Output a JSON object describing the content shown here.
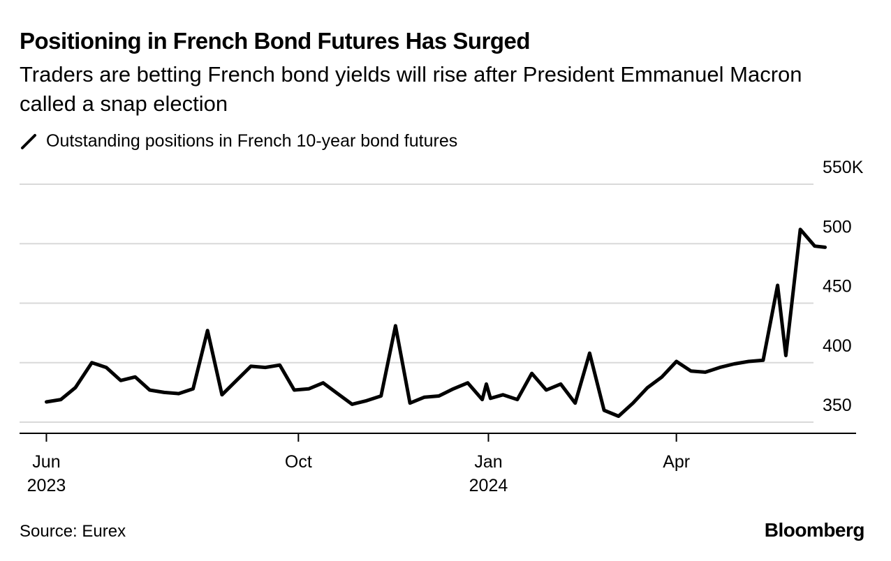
{
  "title": "Positioning in French Bond Futures Has Surged",
  "subtitle": "Traders are betting French bond yields will rise after President Emmanuel Macron called a snap election",
  "legend_label": "Outstanding positions in French 10-year bond futures",
  "source": "Source: Eurex",
  "brand": "Bloomberg",
  "colors": {
    "line": "#000000",
    "grid": "#d9d9d9",
    "axis": "#000000",
    "text": "#000000"
  },
  "chart_data": {
    "type": "line",
    "title": "Positioning in French Bond Futures Has Surged",
    "xlabel": "",
    "ylabel": "",
    "ylim": [
      340,
      550
    ],
    "yticks": [
      350,
      400,
      450,
      500,
      550
    ],
    "ytick_labels": [
      "350",
      "400",
      "450",
      "500",
      "550K"
    ],
    "xlim": [
      "2023-05-19",
      "2024-06-27"
    ],
    "xticks": [
      {
        "date": "2023-06-01",
        "label": "Jun",
        "sublabel": "2023"
      },
      {
        "date": "2023-10-01",
        "label": "Oct",
        "sublabel": ""
      },
      {
        "date": "2024-01-01",
        "label": "Jan",
        "sublabel": "2024"
      },
      {
        "date": "2024-04-01",
        "label": "Apr",
        "sublabel": ""
      }
    ],
    "grid": true,
    "series": [
      {
        "name": "Outstanding positions in French 10-year bond futures",
        "points": [
          [
            "2023-06-01",
            367
          ],
          [
            "2023-06-08",
            369
          ],
          [
            "2023-06-15",
            379
          ],
          [
            "2023-06-23",
            400
          ],
          [
            "2023-06-30",
            396
          ],
          [
            "2023-07-07",
            385
          ],
          [
            "2023-07-14",
            388
          ],
          [
            "2023-07-21",
            377
          ],
          [
            "2023-07-28",
            375
          ],
          [
            "2023-08-04",
            374
          ],
          [
            "2023-08-11",
            378
          ],
          [
            "2023-08-18",
            427
          ],
          [
            "2023-08-25",
            373
          ],
          [
            "2023-09-01",
            385
          ],
          [
            "2023-09-08",
            397
          ],
          [
            "2023-09-15",
            396
          ],
          [
            "2023-09-22",
            398
          ],
          [
            "2023-09-29",
            377
          ],
          [
            "2023-10-06",
            378
          ],
          [
            "2023-10-13",
            383
          ],
          [
            "2023-10-20",
            374
          ],
          [
            "2023-10-27",
            365
          ],
          [
            "2023-11-03",
            368
          ],
          [
            "2023-11-10",
            372
          ],
          [
            "2023-11-17",
            431
          ],
          [
            "2023-11-24",
            366
          ],
          [
            "2023-12-01",
            371
          ],
          [
            "2023-12-08",
            372
          ],
          [
            "2023-12-15",
            378
          ],
          [
            "2023-12-22",
            383
          ],
          [
            "2023-12-29",
            369
          ],
          [
            "2023-12-31",
            382
          ],
          [
            "2024-01-02",
            370
          ],
          [
            "2024-01-08",
            373
          ],
          [
            "2024-01-15",
            369
          ],
          [
            "2024-01-22",
            391
          ],
          [
            "2024-01-29",
            377
          ],
          [
            "2024-02-05",
            382
          ],
          [
            "2024-02-12",
            366
          ],
          [
            "2024-02-19",
            408
          ],
          [
            "2024-02-26",
            360
          ],
          [
            "2024-03-04",
            355
          ],
          [
            "2024-03-11",
            366
          ],
          [
            "2024-03-18",
            379
          ],
          [
            "2024-03-25",
            388
          ],
          [
            "2024-04-01",
            401
          ],
          [
            "2024-04-08",
            393
          ],
          [
            "2024-04-15",
            392
          ],
          [
            "2024-04-22",
            396
          ],
          [
            "2024-04-29",
            399
          ],
          [
            "2024-05-06",
            401
          ],
          [
            "2024-05-13",
            402
          ],
          [
            "2024-05-20",
            465
          ],
          [
            "2024-05-24",
            406
          ],
          [
            "2024-05-31",
            512
          ],
          [
            "2024-06-07",
            498
          ],
          [
            "2024-06-12",
            497
          ]
        ]
      }
    ]
  }
}
